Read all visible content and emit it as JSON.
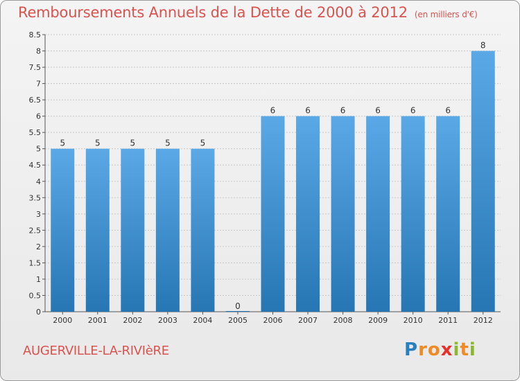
{
  "title": "Remboursements Annuels de la Dette de 2000 à 2012",
  "unit": "(en milliers d'€)",
  "commune": "AUGERVILLE-LA-RIVIèRE",
  "logo": {
    "text": "Proxiti",
    "letters": [
      {
        "ch": "P",
        "color": "#2a7fc0"
      },
      {
        "ch": "r",
        "color": "#f08a24"
      },
      {
        "ch": "o",
        "color": "#f08a24"
      },
      {
        "ch": "x",
        "color": "#e8302a"
      },
      {
        "ch": "i",
        "color": "#8ab82e"
      },
      {
        "ch": "t",
        "color": "#f08a24"
      },
      {
        "ch": "i",
        "color": "#8ab82e"
      }
    ]
  },
  "colors": {
    "bar_top": "#5aa9e6",
    "bar_bottom": "#2776b4",
    "title": "#d9534f",
    "grid": "#c8c8c8",
    "axis_text": "#333333"
  },
  "chart_data": {
    "type": "bar",
    "categories": [
      "2000",
      "2001",
      "2002",
      "2003",
      "2004",
      "2005",
      "2006",
      "2007",
      "2008",
      "2009",
      "2010",
      "2011",
      "2012"
    ],
    "values": [
      5,
      5,
      5,
      5,
      5,
      0,
      6,
      6,
      6,
      6,
      6,
      6,
      8
    ],
    "data_labels": [
      "5",
      "5",
      "5",
      "5",
      "5",
      "0",
      "6",
      "6",
      "6",
      "6",
      "6",
      "6",
      "8"
    ],
    "ylim": [
      0,
      8.5
    ],
    "yticks": [
      0,
      0.5,
      1,
      1.5,
      2,
      2.5,
      3,
      3.5,
      4,
      4.5,
      5,
      5.5,
      6,
      6.5,
      7,
      7.5,
      8,
      8.5
    ],
    "ytick_labels": [
      "0",
      "0.5",
      "1",
      "1.5",
      "2",
      "2.5",
      "3",
      "3.5",
      "4",
      "4.5",
      "5",
      "5.5",
      "6",
      "6.5",
      "7",
      "7.5",
      "8",
      "8.5"
    ],
    "grid": true,
    "title": "Remboursements Annuels de la Dette de 2000 à 2012",
    "xlabel": "",
    "ylabel": ""
  }
}
